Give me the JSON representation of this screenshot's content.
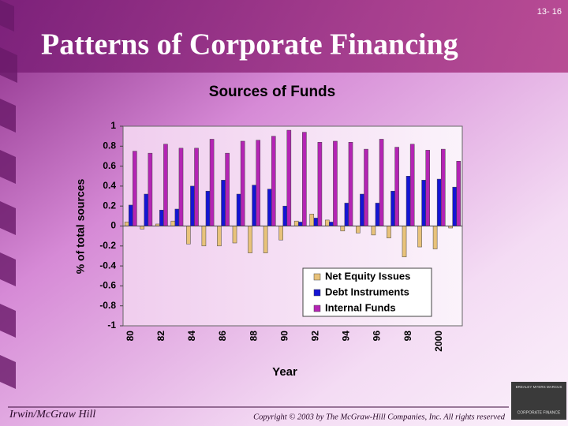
{
  "slide_number": "13- 16",
  "slide_title": "Patterns of Corporate Financing",
  "footer_left": "Irwin/McGraw Hill",
  "footer_right": "Copyright © 2003 by The McGraw-Hill Companies, Inc. All rights reserved",
  "logo": {
    "authors": "BREALEY MYERS MARCUS",
    "book": "CORPORATE FINANCE"
  },
  "chart_data": {
    "type": "bar",
    "title": "Sources of Funds",
    "x_label": "Year",
    "y_label": "% of total sources",
    "categories": [
      "80",
      null,
      "82",
      null,
      "84",
      null,
      "86",
      null,
      "88",
      null,
      "90",
      null,
      "92",
      null,
      "94",
      null,
      "96",
      null,
      "98",
      null,
      "2000",
      null
    ],
    "series": [
      {
        "name": "Net Equity Issues",
        "color": "#e8c27a",
        "values": [
          0.04,
          -0.03,
          0.02,
          0.05,
          -0.18,
          -0.2,
          -0.2,
          -0.17,
          -0.27,
          -0.27,
          -0.14,
          0.05,
          0.12,
          0.06,
          -0.05,
          -0.07,
          -0.09,
          -0.12,
          -0.31,
          -0.21,
          -0.23,
          -0.02
        ]
      },
      {
        "name": "Debt Instruments",
        "color": "#1414d4",
        "values": [
          0.21,
          0.32,
          0.16,
          0.17,
          0.4,
          0.35,
          0.46,
          0.32,
          0.41,
          0.37,
          0.2,
          0.04,
          0.08,
          0.04,
          0.23,
          0.32,
          0.23,
          0.35,
          0.5,
          0.46,
          0.47,
          0.39
        ]
      },
      {
        "name": "Internal Funds",
        "color": "#b424b4",
        "values": [
          0.75,
          0.73,
          0.82,
          0.78,
          0.78,
          0.87,
          0.73,
          0.85,
          0.86,
          0.9,
          0.96,
          0.94,
          0.84,
          0.85,
          0.84,
          0.77,
          0.87,
          0.79,
          0.82,
          0.76,
          0.77,
          0.65
        ]
      }
    ],
    "ylim": [
      -1,
      1
    ],
    "yticks": [
      1,
      0.8,
      0.6,
      0.4,
      0.2,
      0,
      -0.2,
      -0.4,
      -0.6,
      -0.8,
      -1
    ],
    "legend": "lower right"
  }
}
